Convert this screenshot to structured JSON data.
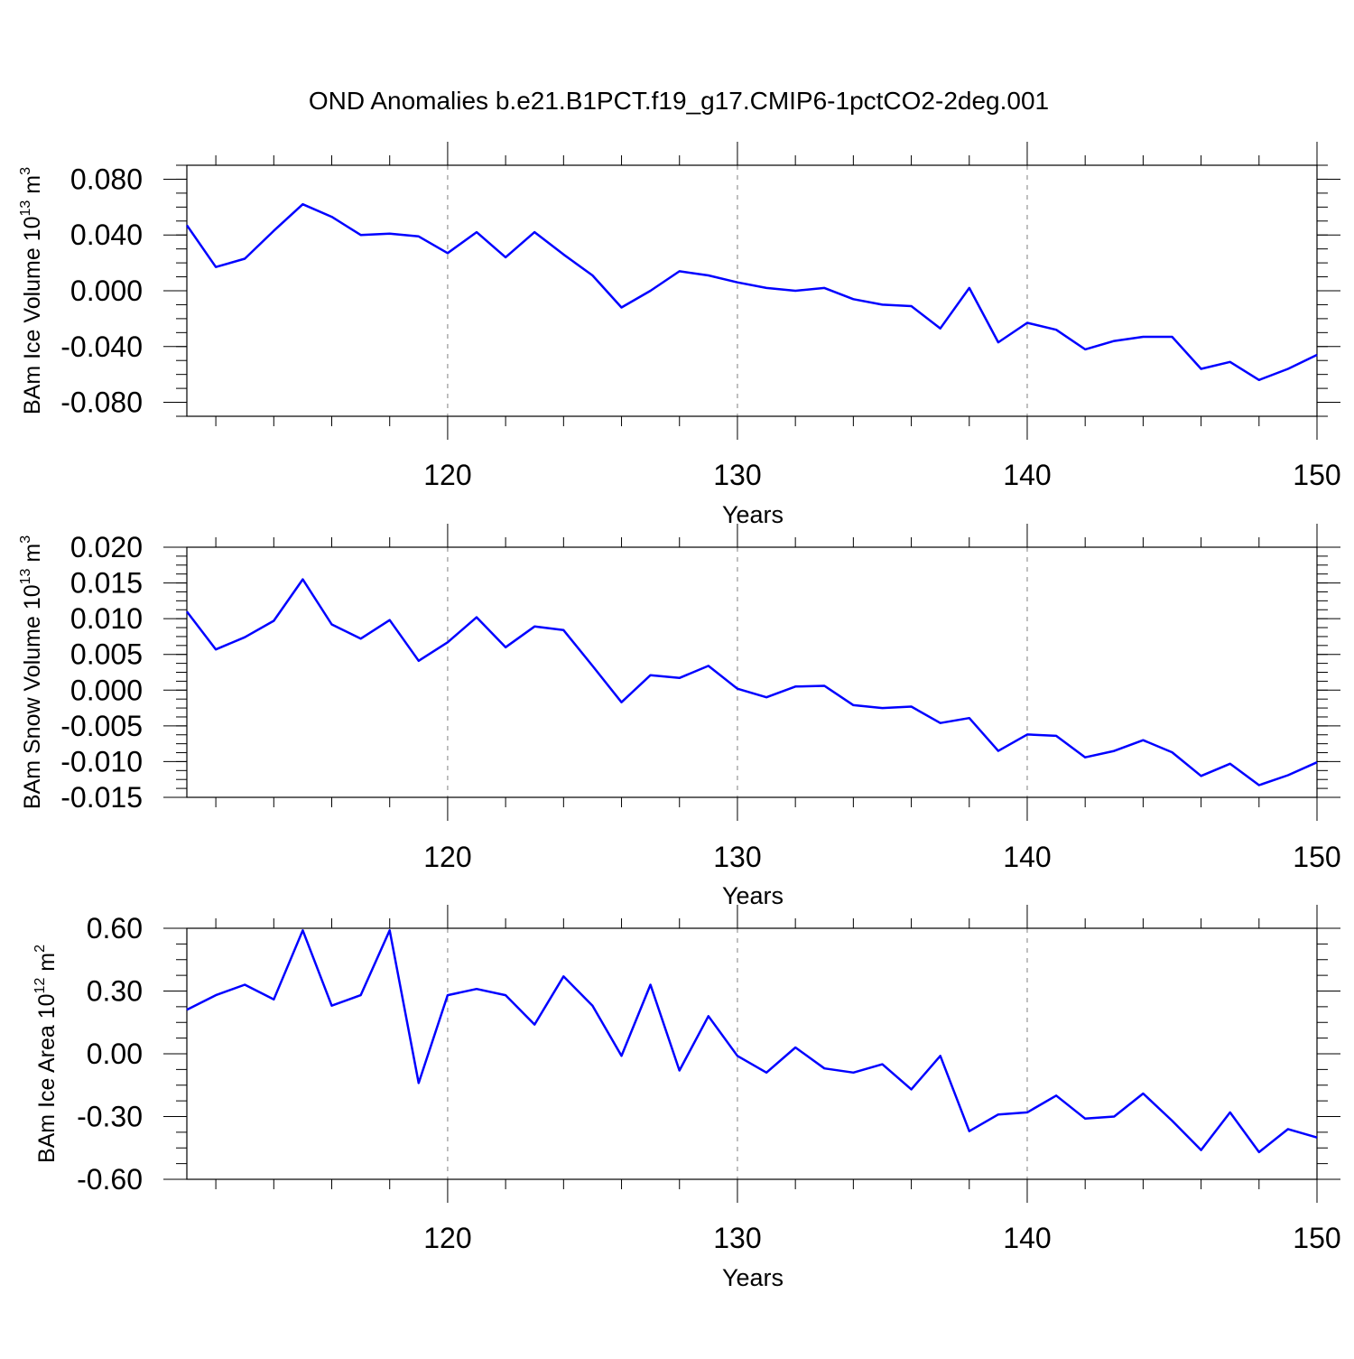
{
  "title": "OND Anomalies b.e21.B1PCT.f19_g17.CMIP6-1pctCO2-2deg.001",
  "colors": {
    "line": "#0000ff",
    "axis": "#000000",
    "grid": "#808080"
  },
  "chart_data": [
    {
      "type": "line",
      "name": "ice-volume",
      "ylabel": {
        "text": "BAm Ice Volume 10",
        "exp": "13",
        "unit": " m",
        "unit_exp": "3"
      },
      "xlabel": "Years",
      "xlim": [
        111,
        150
      ],
      "ylim": [
        -0.09,
        0.09
      ],
      "xticks": [
        120,
        130,
        140,
        150
      ],
      "xtick_labels": [
        "120",
        "130",
        "140",
        "150"
      ],
      "yticks": [
        0.08,
        0.04,
        0.0,
        -0.04,
        -0.08
      ],
      "ytick_labels": [
        "0.080",
        "0.040",
        "0.000",
        "-0.040",
        "-0.080"
      ],
      "x": [
        111,
        112,
        113,
        114,
        115,
        116,
        117,
        118,
        119,
        120,
        121,
        122,
        123,
        124,
        125,
        126,
        127,
        128,
        129,
        130,
        131,
        132,
        133,
        134,
        135,
        136,
        137,
        138,
        139,
        140,
        141,
        142,
        143,
        144,
        145,
        146,
        147,
        148,
        149,
        150
      ],
      "series": [
        {
          "name": "BAm Ice Volume",
          "values": [
            0.047,
            0.017,
            0.023,
            0.043,
            0.062,
            0.053,
            0.04,
            0.041,
            0.039,
            0.027,
            0.042,
            0.024,
            0.042,
            0.026,
            0.011,
            -0.012,
            0.0,
            0.014,
            0.011,
            0.006,
            0.002,
            0.0,
            0.002,
            -0.006,
            -0.01,
            -0.011,
            -0.027,
            0.002,
            -0.037,
            -0.023,
            -0.028,
            -0.042,
            -0.036,
            -0.033,
            -0.033,
            -0.056,
            -0.051,
            -0.064,
            -0.056,
            -0.046
          ]
        }
      ]
    },
    {
      "type": "line",
      "name": "snow-volume",
      "ylabel": {
        "text": "BAm Snow Volume 10",
        "exp": "13",
        "unit": " m",
        "unit_exp": "3"
      },
      "xlabel": "Years",
      "xlim": [
        111,
        150
      ],
      "ylim": [
        -0.015,
        0.02
      ],
      "xticks": [
        120,
        130,
        140,
        150
      ],
      "xtick_labels": [
        "120",
        "130",
        "140",
        "150"
      ],
      "yticks": [
        0.02,
        0.015,
        0.01,
        0.005,
        0.0,
        -0.005,
        -0.01,
        -0.015
      ],
      "ytick_labels": [
        "0.020",
        "0.015",
        "0.010",
        "0.005",
        "0.000",
        "-0.005",
        "-0.010",
        "-0.015"
      ],
      "x": [
        111,
        112,
        113,
        114,
        115,
        116,
        117,
        118,
        119,
        120,
        121,
        122,
        123,
        124,
        125,
        126,
        127,
        128,
        129,
        130,
        131,
        132,
        133,
        134,
        135,
        136,
        137,
        138,
        139,
        140,
        141,
        142,
        143,
        144,
        145,
        146,
        147,
        148,
        149,
        150
      ],
      "series": [
        {
          "name": "BAm Snow Volume",
          "values": [
            0.011,
            0.0057,
            0.0074,
            0.0097,
            0.0155,
            0.0092,
            0.0072,
            0.0098,
            0.0041,
            0.0067,
            0.0102,
            0.006,
            0.0089,
            0.0084,
            0.0034,
            -0.0017,
            0.0021,
            0.0017,
            0.0034,
            0.0002,
            -0.001,
            0.0005,
            0.0006,
            -0.0021,
            -0.0025,
            -0.0023,
            -0.0046,
            -0.0039,
            -0.0085,
            -0.0062,
            -0.0064,
            -0.0094,
            -0.0085,
            -0.007,
            -0.0087,
            -0.012,
            -0.0103,
            -0.0133,
            -0.0119,
            -0.0101
          ]
        }
      ]
    },
    {
      "type": "line",
      "name": "ice-area",
      "ylabel": {
        "text": "BAm Ice Area 10",
        "exp": "12",
        "unit": " m",
        "unit_exp": "2"
      },
      "xlabel": "Years",
      "xlim": [
        111,
        150
      ],
      "ylim": [
        -0.6,
        0.6
      ],
      "xticks": [
        120,
        130,
        140,
        150
      ],
      "xtick_labels": [
        "120",
        "130",
        "140",
        "150"
      ],
      "yticks": [
        0.6,
        0.3,
        0.0,
        -0.3,
        -0.6
      ],
      "ytick_labels": [
        "0.60",
        "0.30",
        "0.00",
        "-0.30",
        "-0.60"
      ],
      "x": [
        111,
        112,
        113,
        114,
        115,
        116,
        117,
        118,
        119,
        120,
        121,
        122,
        123,
        124,
        125,
        126,
        127,
        128,
        129,
        130,
        131,
        132,
        133,
        134,
        135,
        136,
        137,
        138,
        139,
        140,
        141,
        142,
        143,
        144,
        145,
        146,
        147,
        148,
        149,
        150
      ],
      "series": [
        {
          "name": "BAm Ice Area",
          "values": [
            0.21,
            0.28,
            0.33,
            0.26,
            0.59,
            0.23,
            0.28,
            0.59,
            -0.14,
            0.28,
            0.31,
            0.28,
            0.14,
            0.37,
            0.23,
            -0.01,
            0.33,
            -0.08,
            0.18,
            -0.01,
            -0.09,
            0.03,
            -0.07,
            -0.09,
            -0.05,
            -0.17,
            -0.01,
            -0.37,
            -0.29,
            -0.28,
            -0.2,
            -0.31,
            -0.3,
            -0.19,
            -0.32,
            -0.46,
            -0.28,
            -0.47,
            -0.36,
            -0.4
          ]
        }
      ]
    }
  ]
}
